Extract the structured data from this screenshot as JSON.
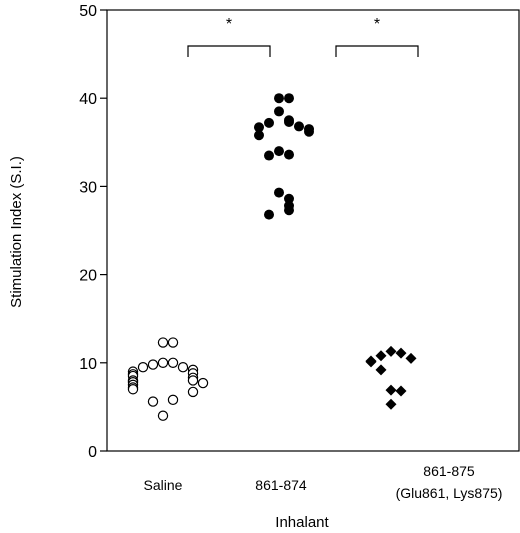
{
  "chart_data": {
    "type": "scatter",
    "title": "",
    "xlabel": "Inhalant",
    "ylabel": "Stimulation Index (S.I.)",
    "ylim": [
      0,
      50
    ],
    "yticks": [
      "0",
      "10",
      "20",
      "30",
      "40",
      "50"
    ],
    "grid": false,
    "legend": "none",
    "categories": [
      {
        "label": "Saline",
        "label_line2": ""
      },
      {
        "label": "861-874",
        "label_line2": ""
      },
      {
        "label": "861-875",
        "label_line2": "(Glu861, Lys875)"
      }
    ],
    "series": [
      {
        "category": "Saline",
        "marker": "open-circle",
        "values": [
          12.3,
          12.3,
          10.0,
          10.0,
          9.8,
          9.5,
          9.5,
          9.2,
          9.0,
          8.8,
          8.7,
          8.5,
          8.3,
          8.0,
          8.0,
          7.8,
          7.7,
          7.5,
          7.2,
          7.0,
          6.7,
          5.8,
          5.6,
          4.0
        ]
      },
      {
        "category": "861-874",
        "marker": "filled-circle",
        "values": [
          40.0,
          40.0,
          38.5,
          37.5,
          37.3,
          37.2,
          36.8,
          36.7,
          36.5,
          36.2,
          35.8,
          34.0,
          33.6,
          33.5,
          29.3,
          28.6,
          27.8,
          27.3,
          26.8
        ]
      },
      {
        "category": "861-875",
        "marker": "filled-diamond",
        "values": [
          11.3,
          11.1,
          10.8,
          10.5,
          10.2,
          10.1,
          9.2,
          6.9,
          6.8,
          5.3
        ]
      }
    ],
    "significance": [
      {
        "from": "Saline",
        "to": "861-874",
        "label": "*"
      },
      {
        "from": "861-874",
        "to": "861-875",
        "label": "*"
      }
    ]
  }
}
